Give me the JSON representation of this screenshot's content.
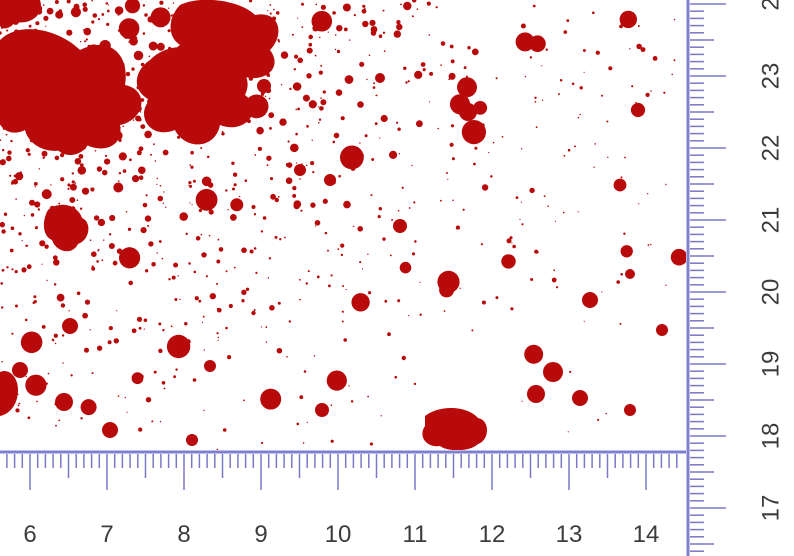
{
  "colors": {
    "blood": "#b80a0a",
    "ruler_line": "#7f7fd0",
    "ruler_tick": "#7b78c8",
    "label": "#3c3c3c",
    "background": "#ffffff"
  },
  "horizontal_ruler": {
    "labels": [
      "6",
      "7",
      "8",
      "9",
      "10",
      "11",
      "12",
      "13",
      "14"
    ]
  },
  "vertical_ruler": {
    "labels": [
      "2",
      "23",
      "22",
      "21",
      "20",
      "19",
      "18",
      "17"
    ]
  }
}
